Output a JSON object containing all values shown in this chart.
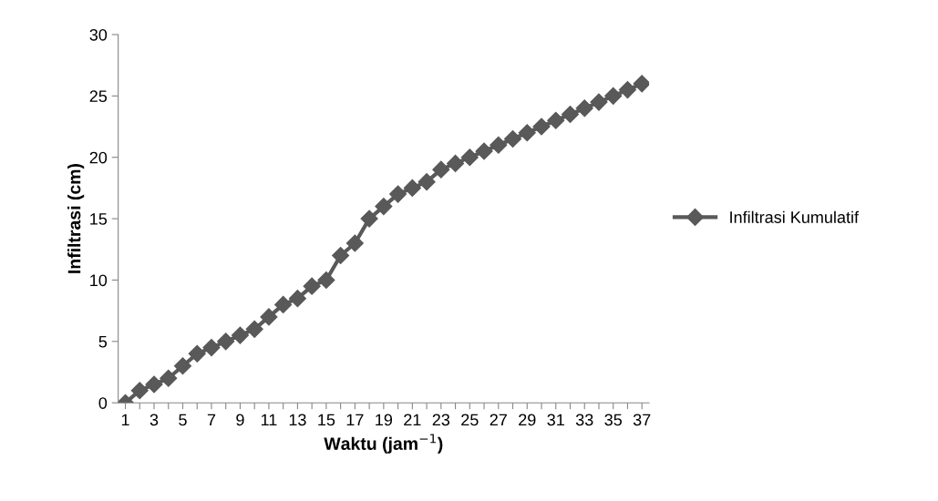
{
  "chart_data": {
    "type": "line",
    "xlabel": "Waktu (jam$^{−1}$)",
    "ylabel": "Infiltrasi (cm)",
    "categories": [
      "1",
      null,
      "3",
      null,
      "5",
      null,
      "7",
      null,
      "9",
      null,
      "11",
      null,
      "13",
      null,
      "15",
      null,
      "17",
      null,
      "19",
      null,
      "21",
      null,
      "23",
      null,
      "25",
      null,
      "27",
      null,
      "29",
      null,
      "31",
      null,
      "33",
      null,
      "35",
      null,
      "37"
    ],
    "series": [
      {
        "name": "Infiltrasi Kumulatif",
        "color": "#595959",
        "values": [
          0,
          1,
          1.5,
          2,
          3,
          4,
          4.5,
          5,
          5.5,
          6,
          7,
          8,
          8.5,
          9.5,
          10,
          12,
          13,
          15,
          16,
          17,
          17.5,
          18,
          19,
          19.5,
          20,
          20.5,
          21,
          21.5,
          22,
          22.5,
          23,
          23.5,
          24,
          24.5,
          25,
          25.5,
          26
        ]
      }
    ],
    "ylim": [
      0,
      30
    ],
    "yticks": [
      0,
      5,
      10,
      15,
      20,
      25,
      30
    ],
    "grid": false,
    "legend": "right",
    "marker": "diamond",
    "line_style": "solid"
  }
}
